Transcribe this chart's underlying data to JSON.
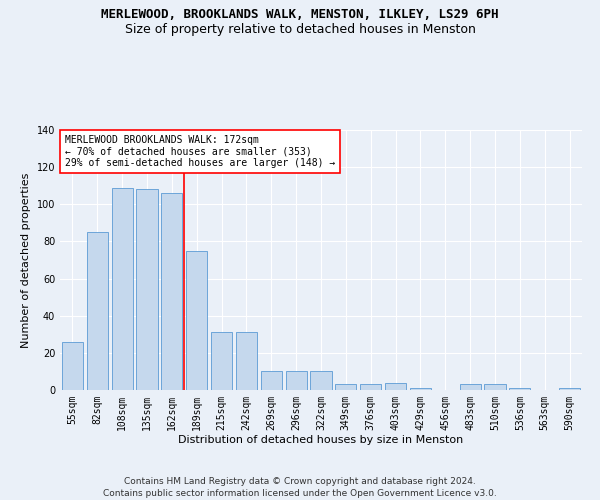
{
  "title": "MERLEWOOD, BROOKLANDS WALK, MENSTON, ILKLEY, LS29 6PH",
  "subtitle": "Size of property relative to detached houses in Menston",
  "xlabel": "Distribution of detached houses by size in Menston",
  "ylabel": "Number of detached properties",
  "categories": [
    "55sqm",
    "82sqm",
    "108sqm",
    "135sqm",
    "162sqm",
    "189sqm",
    "215sqm",
    "242sqm",
    "269sqm",
    "296sqm",
    "322sqm",
    "349sqm",
    "376sqm",
    "403sqm",
    "429sqm",
    "456sqm",
    "483sqm",
    "510sqm",
    "536sqm",
    "563sqm",
    "590sqm"
  ],
  "values": [
    26,
    85,
    109,
    108,
    106,
    75,
    31,
    31,
    10,
    10,
    10,
    3,
    3,
    4,
    1,
    0,
    3,
    3,
    1,
    0,
    1
  ],
  "bar_color": "#c5d8ed",
  "bar_edge_color": "#5b9bd5",
  "vline_x": 4.5,
  "vline_color": "red",
  "annotation_text": "MERLEWOOD BROOKLANDS WALK: 172sqm\n← 70% of detached houses are smaller (353)\n29% of semi-detached houses are larger (148) →",
  "annotation_box_color": "white",
  "annotation_box_edge": "red",
  "ylim": [
    0,
    140
  ],
  "yticks": [
    0,
    20,
    40,
    60,
    80,
    100,
    120,
    140
  ],
  "footnote": "Contains HM Land Registry data © Crown copyright and database right 2024.\nContains public sector information licensed under the Open Government Licence v3.0.",
  "bg_color": "#eaf0f8",
  "plot_bg_color": "#eaf0f8",
  "grid_color": "white",
  "title_fontsize": 9,
  "subtitle_fontsize": 9,
  "axis_label_fontsize": 8,
  "tick_fontsize": 7,
  "annot_fontsize": 7,
  "footnote_fontsize": 6.5
}
